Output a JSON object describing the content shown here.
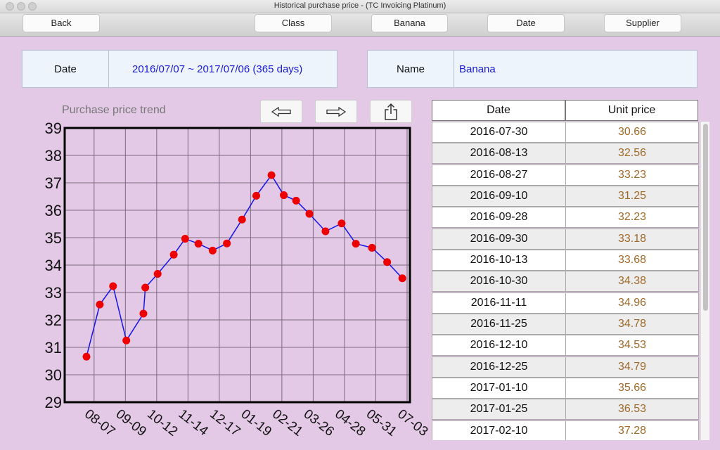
{
  "window": {
    "title": "Historical purchase price - (TC Invoicing Platinum)"
  },
  "toolbar": {
    "back": "Back",
    "class": "Class",
    "banana": "Banana",
    "date": "Date",
    "supplier": "Supplier"
  },
  "info": {
    "date_label": "Date",
    "date_value": "2016/07/07 ~ 2017/07/06  (365 days)",
    "name_label": "Name",
    "name_value": "Banana"
  },
  "chart_title": "Purchase price trend",
  "table": {
    "headers": [
      "Date",
      "Unit price"
    ],
    "rows": [
      [
        "2016-07-30",
        "30.66"
      ],
      [
        "2016-08-13",
        "32.56"
      ],
      [
        "2016-08-27",
        "33.23"
      ],
      [
        "2016-09-10",
        "31.25"
      ],
      [
        "2016-09-28",
        "32.23"
      ],
      [
        "2016-09-30",
        "33.18"
      ],
      [
        "2016-10-13",
        "33.68"
      ],
      [
        "2016-10-30",
        "34.38"
      ],
      [
        "2016-11-11",
        "34.96"
      ],
      [
        "2016-11-25",
        "34.78"
      ],
      [
        "2016-12-10",
        "34.53"
      ],
      [
        "2016-12-25",
        "34.79"
      ],
      [
        "2017-01-10",
        "35.66"
      ],
      [
        "2017-01-25",
        "36.53"
      ],
      [
        "2017-02-10",
        "37.28"
      ]
    ]
  },
  "colors": {
    "line": "#1414e6",
    "point": "#ee0000",
    "price_text": "#a06a2a",
    "background": "#e4c9e7"
  },
  "chart_data": {
    "type": "line",
    "title": "Purchase price trend",
    "xlabel": "",
    "ylabel": "",
    "ylim": [
      29,
      39
    ],
    "xlim": [
      "2016-07-07",
      "2017-07-06"
    ],
    "y_ticks": [
      "29",
      "30",
      "31",
      "32",
      "33",
      "34",
      "35",
      "36",
      "37",
      "38",
      "39"
    ],
    "x_ticks": [
      {
        "date": "2016-08-07",
        "label": "08-07"
      },
      {
        "date": "2016-09-09",
        "label": "09-09"
      },
      {
        "date": "2016-10-12",
        "label": "10-12"
      },
      {
        "date": "2016-11-14",
        "label": "11-14"
      },
      {
        "date": "2016-12-17",
        "label": "12-17"
      },
      {
        "date": "2017-01-19",
        "label": "01-19"
      },
      {
        "date": "2017-02-21",
        "label": "02-21"
      },
      {
        "date": "2017-03-26",
        "label": "03-26"
      },
      {
        "date": "2017-04-28",
        "label": "04-28"
      },
      {
        "date": "2017-05-31",
        "label": "05-31"
      },
      {
        "date": "2017-07-03",
        "label": "07-03"
      }
    ],
    "grid": true,
    "x": [
      "2016-07-30",
      "2016-08-13",
      "2016-08-27",
      "2016-09-10",
      "2016-09-28",
      "2016-09-30",
      "2016-10-13",
      "2016-10-30",
      "2016-11-11",
      "2016-11-25",
      "2016-12-10",
      "2016-12-25",
      "2017-01-10",
      "2017-01-25",
      "2017-02-10",
      "2017-02-23",
      "2017-03-08",
      "2017-03-22",
      "2017-04-08",
      "2017-04-25",
      "2017-05-10",
      "2017-05-27",
      "2017-06-12",
      "2017-06-28"
    ],
    "series": [
      {
        "values": [
          30.66,
          32.56,
          33.23,
          31.25,
          32.23,
          33.18,
          33.68,
          34.38,
          34.96,
          34.78,
          34.53,
          34.79,
          35.66,
          36.53,
          37.28,
          36.55,
          36.35,
          35.87,
          35.23,
          35.52,
          34.78,
          34.63,
          34.11,
          33.52
        ]
      }
    ]
  }
}
